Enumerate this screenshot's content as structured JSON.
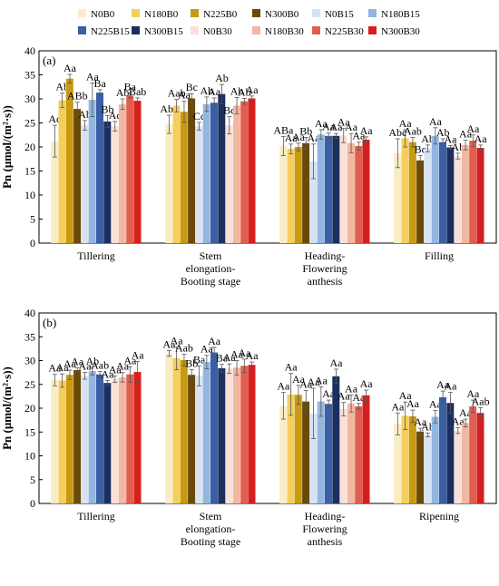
{
  "legend": {
    "items": [
      {
        "name": "N0B0",
        "color": "#f8edc4"
      },
      {
        "name": "N180B0",
        "color": "#f4cf5d"
      },
      {
        "name": "N225B0",
        "color": "#c89a12"
      },
      {
        "name": "N300B0",
        "color": "#6b4a08"
      },
      {
        "name": "N0B15",
        "color": "#d7e3f3"
      },
      {
        "name": "N180B15",
        "color": "#93b6e0"
      },
      {
        "name": "N225B15",
        "color": "#3a5fa5"
      },
      {
        "name": "N300B15",
        "color": "#1b2f5e"
      },
      {
        "name": "N0B30",
        "color": "#fae0d6"
      },
      {
        "name": "N180B30",
        "color": "#f2b7a2"
      },
      {
        "name": "N225B30",
        "color": "#e05e4e"
      },
      {
        "name": "N300B30",
        "color": "#d51f1f"
      }
    ]
  },
  "chart_data": [
    {
      "type": "bar",
      "panel_label": "(a)",
      "ylabel": "Pn (μmol/(m²·s))",
      "ylim": [
        0,
        40
      ],
      "yticks": [
        0,
        5,
        10,
        15,
        20,
        25,
        30,
        35,
        40
      ],
      "categories": [
        "Tillering",
        "Stem elongation-Booting stage",
        "Heading-Flowering anthesis",
        "Filling"
      ],
      "category_lines": [
        [
          "Tillering"
        ],
        [
          "Stem",
          "elongation-",
          "Booting stage"
        ],
        [
          "Heading-",
          "Flowering",
          "anthesis"
        ],
        [
          "Filling"
        ]
      ],
      "series": [
        {
          "name": "N0B0",
          "values": [
            21.2,
            24.7,
            20.2,
            18.7
          ],
          "errors": [
            3.3,
            1.9,
            2.0,
            3.0
          ],
          "labels": [
            "Ac",
            "Abc",
            "ABa",
            "Abc"
          ]
        },
        {
          "name": "N180B0",
          "values": [
            29.7,
            28.6,
            19.6,
            21.8
          ],
          "errors": [
            1.5,
            1.3,
            1.0,
            1.8
          ],
          "labels": [
            "Ab",
            "Aab",
            "Aa",
            "Aa"
          ]
        },
        {
          "name": "N225B0",
          "values": [
            34.2,
            27.3,
            20.0,
            21.0
          ],
          "errors": [
            0.9,
            2.2,
            0.8,
            1.0
          ],
          "labels": [
            "Aa",
            "Aa",
            "Aa",
            "Aab"
          ]
        },
        {
          "name": "N300B0",
          "values": [
            27.9,
            30.1,
            20.8,
            17.2
          ],
          "errors": [
            1.4,
            1.0,
            1.2,
            1.0
          ],
          "labels": [
            "ABb",
            "Bc",
            "Bb",
            "Bc"
          ]
        },
        {
          "name": "N0B15",
          "values": [
            24.5,
            24.3,
            17.0,
            19.7
          ],
          "errors": [
            1.0,
            0.8,
            3.6,
            0.7
          ],
          "labels": [
            "Ab",
            "Cc",
            "Aa",
            "Ab"
          ]
        },
        {
          "name": "N180B15",
          "values": [
            29.8,
            28.9,
            22.6,
            22.3
          ],
          "errors": [
            3.5,
            1.5,
            1.0,
            1.7
          ],
          "labels": [
            "Aa",
            "Ab",
            "Aa",
            "Aa"
          ]
        },
        {
          "name": "N225B15",
          "values": [
            31.3,
            29.2,
            22.3,
            21.0
          ],
          "errors": [
            0.6,
            1.0,
            0.6,
            0.7
          ],
          "labels": [
            "Ba",
            "Aa",
            "Aa",
            "Ab"
          ]
        },
        {
          "name": "N300B15",
          "values": [
            25.3,
            31.0,
            22.3,
            19.9
          ],
          "errors": [
            1.2,
            2.0,
            0.5,
            0.4
          ],
          "labels": [
            "Bb",
            "Ab",
            "Aa",
            "Aa"
          ]
        },
        {
          "name": "N0B30",
          "values": [
            24.3,
            24.5,
            22.4,
            18.1
          ],
          "errors": [
            1.0,
            1.8,
            1.5,
            0.6
          ],
          "labels": [
            "Ac",
            "Bc",
            "Aa",
            "Ab"
          ]
        },
        {
          "name": "N180B30",
          "values": [
            28.9,
            28.6,
            20.8,
            20.4
          ],
          "errors": [
            1.1,
            1.7,
            2.0,
            1.0
          ],
          "labels": [
            "Ab",
            "Ab",
            "Aa",
            "Aa"
          ]
        },
        {
          "name": "N225B30",
          "values": [
            30.7,
            29.5,
            20.2,
            21.3
          ],
          "errors": [
            0.5,
            0.6,
            0.8,
            1.2
          ],
          "labels": [
            "Ba",
            "Ab",
            "Aa",
            "Aa"
          ]
        },
        {
          "name": "N300B30",
          "values": [
            29.6,
            30.1,
            21.5,
            19.8
          ],
          "errors": [
            0.6,
            0.5,
            0.6,
            0.6
          ],
          "labels": [
            "Bab",
            "Aa",
            "Aa",
            "Aa"
          ]
        }
      ]
    },
    {
      "type": "bar",
      "panel_label": "(b)",
      "ylabel": "Pn (μmol/(m²·s))",
      "ylim": [
        0,
        40
      ],
      "yticks": [
        0,
        5,
        10,
        15,
        20,
        25,
        30,
        35,
        40
      ],
      "categories": [
        "Tillering",
        "Stem elongation-Booting stage",
        "Heading-Flowering anthesis",
        "Ripening"
      ],
      "category_lines": [
        [
          "Tillering"
        ],
        [
          "Stem",
          "elongation-",
          "Booting stage"
        ],
        [
          "Heading-",
          "Flowering",
          "anthesis"
        ],
        [
          "Ripening"
        ]
      ],
      "series": [
        {
          "name": "N0B0",
          "values": [
            25.9,
            31.5,
            20.5,
            16.7
          ],
          "errors": [
            1.2,
            0.6,
            2.8,
            2.3
          ],
          "labels": [
            "Aa",
            "Aa",
            "Aa",
            "Aa"
          ]
        },
        {
          "name": "N180B0",
          "values": [
            25.8,
            30.5,
            22.9,
            18.4
          ],
          "errors": [
            1.4,
            2.4,
            4.4,
            2.9
          ],
          "labels": [
            "Aa",
            "Aa",
            "Aa",
            "Aa"
          ]
        },
        {
          "name": "N225B0",
          "values": [
            27.0,
            30.1,
            22.8,
            18.3
          ],
          "errors": [
            1.0,
            1.2,
            2.0,
            1.3
          ],
          "labels": [
            "Aa",
            "Aab",
            "Aa",
            "Aa"
          ]
        },
        {
          "name": "N300B0",
          "values": [
            28.0,
            27.0,
            21.4,
            15.1
          ],
          "errors": [
            0.5,
            1.1,
            2.3,
            0.7
          ],
          "labels": [
            "Aa",
            "Bb",
            "Aa",
            "Aa"
          ]
        },
        {
          "name": "N0B15",
          "values": [
            26.8,
            26.8,
            18.9,
            14.4
          ],
          "errors": [
            0.7,
            2.1,
            5.3,
            0.4
          ],
          "labels": [
            "Aa",
            "Ba",
            "Aa",
            "Ab"
          ]
        },
        {
          "name": "N180B15",
          "values": [
            27.8,
            29.7,
            21.4,
            18.2
          ],
          "errors": [
            0.8,
            1.4,
            3.1,
            1.3
          ],
          "labels": [
            "Ab",
            "Aa",
            "Aa",
            "Aa"
          ]
        },
        {
          "name": "N225B15",
          "values": [
            27.1,
            31.7,
            20.9,
            22.3
          ],
          "errors": [
            0.6,
            1.1,
            0.8,
            1.3
          ],
          "labels": [
            "Aab",
            "Aa",
            "Aa",
            "Aa"
          ]
        },
        {
          "name": "N300B15",
          "values": [
            25.3,
            28.4,
            26.7,
            21.1
          ],
          "errors": [
            0.5,
            0.8,
            1.5,
            2.2
          ],
          "labels": [
            "Aa",
            "Ba",
            "Aa",
            "Aa"
          ]
        },
        {
          "name": "N0B30",
          "values": [
            26.1,
            28.3,
            19.8,
            15.3
          ],
          "errors": [
            0.7,
            1.0,
            1.4,
            0.6
          ],
          "labels": [
            "Aa",
            "Aa",
            "Aa",
            "Aa"
          ]
        },
        {
          "name": "N180B30",
          "values": [
            26.5,
            28.5,
            21.0,
            16.9
          ],
          "errors": [
            1.0,
            1.5,
            1.8,
            0.8
          ],
          "labels": [
            "Aa",
            "Aa",
            "Aa",
            "Aa"
          ]
        },
        {
          "name": "N225B30",
          "values": [
            27.1,
            28.9,
            20.4,
            20.4
          ],
          "errors": [
            1.6,
            1.4,
            0.6,
            1.3
          ],
          "labels": [
            "Aa",
            "Aa",
            "Aa",
            "Aa"
          ]
        },
        {
          "name": "N300B30",
          "values": [
            27.6,
            29.1,
            22.7,
            19.0
          ],
          "errors": [
            2.2,
            0.6,
            1.1,
            1.1
          ],
          "labels": [
            "Aa",
            "Aa",
            "Aa",
            "Aab"
          ]
        }
      ]
    }
  ]
}
